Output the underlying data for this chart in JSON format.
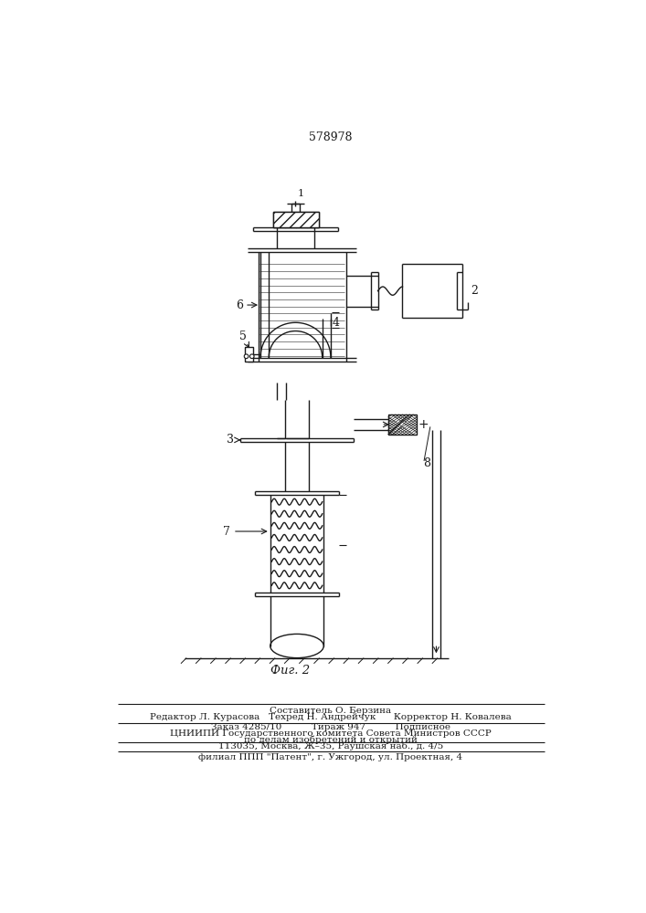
{
  "patent_number": "578978",
  "fig_label": "Фиг. 2",
  "bg_color": "#ffffff",
  "line_color": "#1a1a1a",
  "footer_lines": [
    "Составитель О. Берзина",
    "Редактор Л. Курасова   Техред Н. Андрейчук      Корректор Н. Ковалева",
    "Заказ 4285/10          Тираж 947          Подписное",
    "ЦНИИПИ Государственного комитета Совета Министров СССР",
    "по делам изобретений и открытий",
    "113035, Москва, Ж–35, Раушская наб., д. 4/5",
    "филиал ППП \"Патент\", г. Ужгород, ул. Проектная, 4"
  ]
}
